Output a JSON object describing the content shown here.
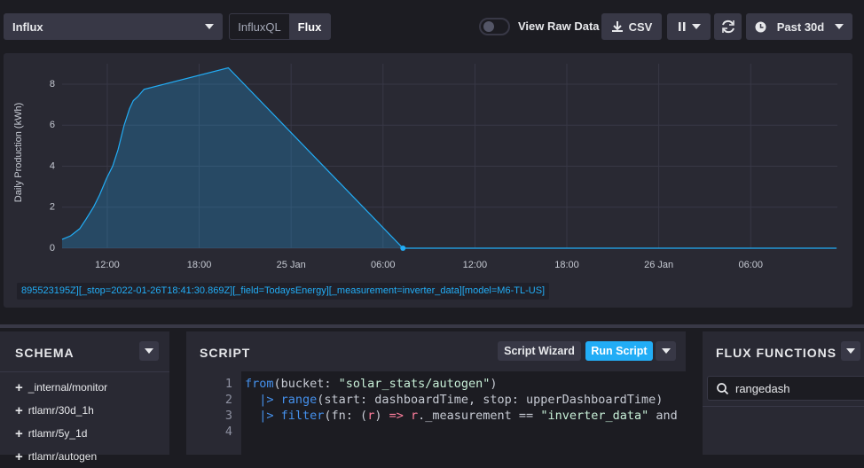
{
  "toolbar": {
    "source": "Influx",
    "modes": [
      "InfluxQL",
      "Flux"
    ],
    "raw_data_label": "View Raw Data",
    "csv_label": "CSV",
    "time_range": "Past 30d"
  },
  "chart_data": {
    "type": "area",
    "ylabel": "Daily Production (kWh)",
    "color": "#22adf6",
    "x": [
      9.05,
      9.6,
      10.2,
      10.6,
      11.1,
      11.5,
      11.95,
      12.35,
      12.7,
      13.1,
      13.45,
      13.7,
      14.0,
      14.4,
      19.9,
      31.3,
      59.6
    ],
    "values": [
      0.43,
      0.6,
      0.95,
      1.4,
      2.0,
      2.6,
      3.4,
      4.0,
      4.8,
      6.0,
      6.8,
      7.2,
      7.4,
      7.75,
      8.8,
      0,
      0
    ],
    "xlim": [
      9.05,
      59.66
    ],
    "ylim": [
      0,
      9
    ],
    "yticks": [
      0,
      2,
      4,
      6,
      8
    ],
    "xticks": [
      {
        "value": 12,
        "label": "12:00"
      },
      {
        "value": 18,
        "label": "18:00"
      },
      {
        "value": 24,
        "label": "25 Jan"
      },
      {
        "value": 30,
        "label": "06:00"
      },
      {
        "value": 36,
        "label": "12:00"
      },
      {
        "value": 42,
        "label": "18:00"
      },
      {
        "value": 48,
        "label": "26 Jan"
      },
      {
        "value": 54,
        "label": "06:00"
      }
    ],
    "grid": true,
    "legend_text": "895523195Z][_stop=2022-01-26T18:41:30.869Z][_field=TodaysEnergy][_measurement=inverter_data][model=M6-TL-US]"
  },
  "schema": {
    "title": "SCHEMA",
    "buckets": [
      "_internal/monitor",
      "rtlamr/30d_1h",
      "rtlamr/5y_1d",
      "rtlamr/autogen"
    ]
  },
  "script": {
    "title": "SCRIPT",
    "wizard_label": "Script Wizard",
    "run_label": "Run Script",
    "line_numbers": [
      1,
      2,
      3,
      4
    ],
    "lines": [
      [
        {
          "text": "from",
          "color": "#4591ed"
        },
        {
          "text": "(bucket: ",
          "color": "#c6cad3"
        },
        {
          "text": "\"solar_stats/autogen\"",
          "color": "#c8f0d8"
        },
        {
          "text": ")",
          "color": "#c6cad3"
        }
      ],
      [
        {
          "text": "  |> ",
          "color": "#4591ed"
        },
        {
          "text": "range",
          "color": "#4591ed"
        },
        {
          "text": "(start: dashboardTime, stop: upperDashboardTime)",
          "color": "#c6cad3"
        }
      ],
      [
        {
          "text": "  |> ",
          "color": "#4591ed"
        },
        {
          "text": "filter",
          "color": "#4591ed"
        },
        {
          "text": "(fn: (",
          "color": "#c6cad3"
        },
        {
          "text": "r",
          "color": "#ff7e9d"
        },
        {
          "text": ") ",
          "color": "#c6cad3"
        },
        {
          "text": "=>",
          "color": "#ff7e9d"
        },
        {
          "text": " r",
          "color": "#ff7e9d"
        },
        {
          "text": "._measurement == ",
          "color": "#c6cad3"
        },
        {
          "text": "\"inverter_data\"",
          "color": "#c8f0d8"
        },
        {
          "text": " and (",
          "color": "#c6cad3"
        }
      ]
    ]
  },
  "functions": {
    "title": "FLUX FUNCTIONS",
    "search": "rangedash"
  }
}
